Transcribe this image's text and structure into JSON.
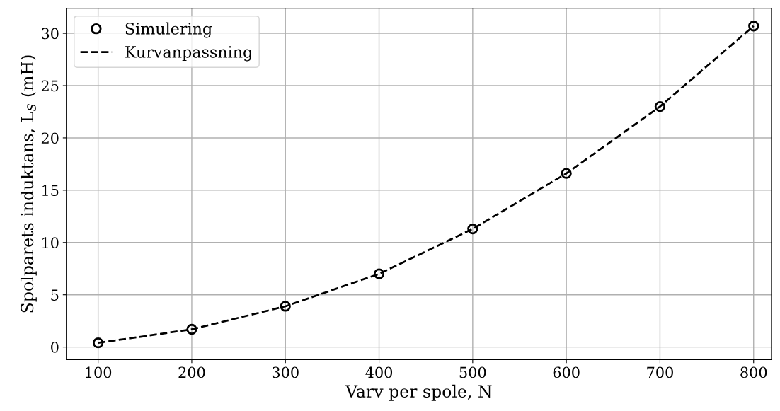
{
  "chart_data": {
    "type": "line",
    "xlabel": "Varv per spole, N",
    "ylabel": "Spolparets induktans, L$_{S}$ (mH)",
    "x": [
      100,
      200,
      300,
      400,
      500,
      600,
      700,
      800
    ],
    "series": [
      {
        "name": "Simulering",
        "type": "scatter",
        "color": "#000000",
        "marker": "circle",
        "values": [
          0.4,
          1.7,
          3.9,
          7.0,
          11.3,
          16.6,
          23.0,
          30.7
        ]
      },
      {
        "name": "Kurvanpassning",
        "color": "#000000",
        "line_style": "dashed",
        "marker": "none",
        "values": [
          0.4,
          1.7,
          3.9,
          7.0,
          11.3,
          16.6,
          23.0,
          30.7
        ]
      }
    ],
    "xlim": [
      66,
      819
    ],
    "ylim": [
      -1.2,
      32.4
    ],
    "xticks": [
      100,
      200,
      300,
      400,
      500,
      600,
      700,
      800
    ],
    "yticks": [
      0,
      5,
      10,
      15,
      20,
      25,
      30
    ],
    "grid": true,
    "legend": "top left"
  }
}
